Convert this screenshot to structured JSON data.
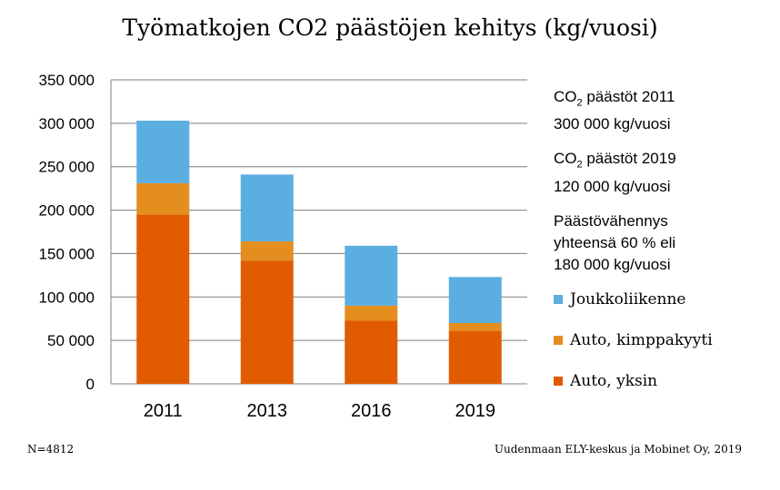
{
  "chart_data": {
    "type": "bar",
    "stacked": true,
    "title": "Työmatkojen CO2 päästöjen kehitys (kg/vuosi)",
    "categories": [
      "2011",
      "2013",
      "2016",
      "2019"
    ],
    "series": [
      {
        "name": "Auto, yksin",
        "color": "#E15C00",
        "values": [
          195000,
          142000,
          73000,
          61000
        ]
      },
      {
        "name": "Auto, kimppakyyti",
        "color": "#E48E1F",
        "values": [
          36000,
          22000,
          17000,
          9000
        ]
      },
      {
        "name": "Joukkoliikenne",
        "color": "#5BAEE0",
        "values": [
          72000,
          77000,
          69000,
          53000
        ]
      }
    ],
    "ylim": [
      0,
      350000
    ],
    "yticks": [
      0,
      50000,
      100000,
      150000,
      200000,
      250000,
      300000,
      350000
    ],
    "ytick_labels": [
      "0",
      "50 000",
      "100 000",
      "150 000",
      "200 000",
      "250 000",
      "300 000",
      "350 000"
    ],
    "grid": true,
    "legend_position": "right"
  },
  "notes": {
    "n1_prefix": "CO",
    "n1_sub": "2",
    "n1_suffix": " päästöt 2011",
    "n1_value": "300 000 kg/vuosi",
    "n2_prefix": "CO",
    "n2_sub": "2",
    "n2_suffix": " päästöt 2019",
    "n2_value": "120 000 kg/vuosi",
    "n3_line1": "Päästövähennys",
    "n3_line2": "yhteensä 60 % eli",
    "n3_line3": "180 000 kg/vuosi"
  },
  "footnotes": {
    "left": "N=4812",
    "right": "Uudenmaan ELY-keskus ja Mobinet Oy, 2019"
  }
}
